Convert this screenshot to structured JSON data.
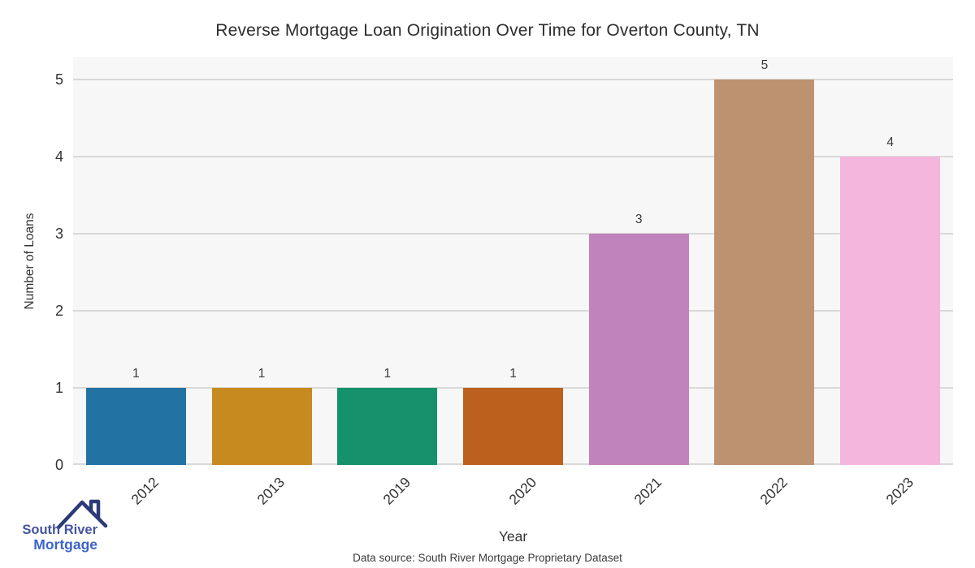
{
  "title": "Reverse Mortgage Loan Origination Over Time for Overton County, TN",
  "chart_data": {
    "type": "bar",
    "categories": [
      "2012",
      "2013",
      "2019",
      "2020",
      "2021",
      "2022",
      "2023"
    ],
    "values": [
      1,
      1,
      1,
      1,
      3,
      5,
      4
    ],
    "value_labels": [
      "1",
      "1",
      "1",
      "1",
      "3",
      "5",
      "4"
    ],
    "bar_colors": [
      "#2272a3",
      "#c68a1e",
      "#15916c",
      "#bc611d",
      "#c083bb",
      "#bd9271",
      "#f4b6dd"
    ],
    "title": "Reverse Mortgage Loan Origination Over Time for Overton County, TN",
    "xlabel": "Year",
    "ylabel": "Number of Loans",
    "ylim": [
      0,
      5
    ],
    "yticks": [
      "0",
      "1",
      "2",
      "3",
      "4",
      "5"
    ],
    "grid": "horizontal",
    "legend": "none",
    "plot_bg": "#f7f7f7",
    "grid_color": "#d9d9d9"
  },
  "footer": {
    "data_source": "Data source: South River Mortgage Proprietary Dataset"
  },
  "logo": {
    "line1": "South River",
    "line2": "Mortgage",
    "icon": "house-roof-icon",
    "icon_color": "#2b3a77",
    "line1_color": "#4553a0",
    "line2_color": "#3c63c8"
  }
}
